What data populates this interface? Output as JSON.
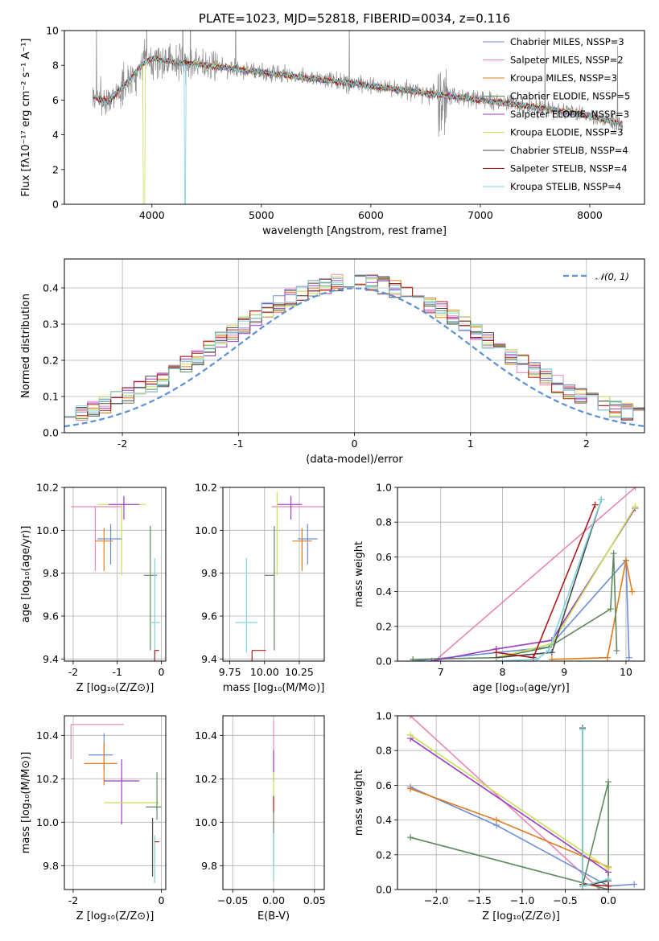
{
  "colors": {
    "Chabrier MILES": "#6c8ed6",
    "Salpeter MILES": "#e887b8",
    "Kroupa MILES": "#e07b1c",
    "Chabrier ELODIE": "#5e8a5e",
    "Salpeter ELODIE": "#9b3dc0",
    "Kroupa ELODIE": "#c8e058",
    "Chabrier STELIB": "#4a4a4a",
    "Salpeter STELIB": "#b01a1a",
    "Kroupa STELIB": "#7fd3dd",
    "normal": "#5b8fd6"
  },
  "chart_data": [
    {
      "id": "spectrum",
      "type": "line",
      "title": "PLATE=1023, MJD=52818, FIBERID=0034, z=0.116",
      "xlabel": "wavelength [Angstrom, rest frame]",
      "ylabel": "Flux [fλ10⁻¹⁷ erg cm⁻² s⁻¹ A⁻¹]",
      "xlim": [
        3200,
        8500
      ],
      "ylim": [
        0,
        10
      ],
      "xticks": [
        4000,
        5000,
        6000,
        7000,
        8000
      ],
      "yticks": [
        0,
        2,
        4,
        6,
        8,
        10
      ],
      "grid": false,
      "legend_position": "top-right",
      "legend": [
        "Chabrier MILES, N_SSP=3",
        "Salpeter MILES, N_SSP=2",
        "Kroupa MILES, N_SSP=3",
        "Chabrier ELODIE, N_SSP=5",
        "Salpeter ELODIE, N_SSP=3",
        "Kroupa ELODIE, N_SSP=3",
        "Chabrier STELIB, N_SSP=4",
        "Salpeter STELIB, N_SSP=4",
        "Kroupa STELIB, N_SSP=4"
      ],
      "continuum_anchors": {
        "x": [
          3450,
          3600,
          3800,
          3900,
          4000,
          4200,
          4500,
          5000,
          5500,
          6000,
          6500,
          7000,
          7500,
          8000,
          8300
        ],
        "y": [
          6.2,
          5.9,
          7.2,
          8.0,
          8.4,
          8.2,
          8.0,
          7.6,
          7.2,
          6.8,
          6.4,
          6.0,
          5.6,
          5.1,
          4.6
        ]
      }
    },
    {
      "id": "residuals",
      "type": "step",
      "xlabel": "(data-model)/error",
      "ylabel": "Normed distribution",
      "xlim": [
        -2.5,
        2.5
      ],
      "ylim": [
        0,
        0.48
      ],
      "xticks": [
        -2,
        -1,
        0,
        1,
        2
      ],
      "yticks": [
        0.0,
        0.1,
        0.2,
        0.3,
        0.4
      ],
      "grid": true,
      "legend_position": "top-right",
      "legend": [
        "𝒩(0, 1)"
      ],
      "bin_width": 0.1
    },
    {
      "id": "age_vs_Z",
      "type": "errorbar",
      "xlabel": "Z [log₁₀(Z/Z⊙)]",
      "ylabel": "age  [log₁₀(age/yr)]",
      "xlim": [
        -2.2,
        0.1
      ],
      "ylim": [
        9.39,
        10.2
      ],
      "xticks": [
        -2,
        -1,
        0
      ],
      "yticks": [
        9.4,
        9.6,
        9.8,
        10.0,
        10.2
      ],
      "grid": true,
      "points": [
        {
          "model": "Salpeter MILES",
          "x": -1.5,
          "xerr": [
            0.55,
            0.6
          ],
          "y": 10.11,
          "yerr": [
            0.3,
            0.0
          ]
        },
        {
          "model": "Kroupa ELODIE",
          "x": -0.9,
          "xerr": [
            0.55,
            0.55
          ],
          "y": 10.12,
          "yerr": [
            0.33,
            0.0
          ]
        },
        {
          "model": "Salpeter ELODIE",
          "x": -0.85,
          "xerr": [
            0.35,
            0.35
          ],
          "y": 10.12,
          "yerr": [
            0.07,
            0.04
          ]
        },
        {
          "model": "Kroupa MILES",
          "x": -1.3,
          "xerr": [
            0.2,
            0.2
          ],
          "y": 9.95,
          "yerr": [
            0.14,
            0.06
          ]
        },
        {
          "model": "Chabrier MILES",
          "x": -1.15,
          "xerr": [
            0.3,
            0.25
          ],
          "y": 9.96,
          "yerr": [
            0.12,
            0.07
          ]
        },
        {
          "model": "Chabrier ELODIE",
          "x": -0.25,
          "xerr": [
            0.15,
            0.15
          ],
          "y": 9.79,
          "yerr": [
            0.35,
            0.23
          ]
        },
        {
          "model": "Kroupa STELIB",
          "x": -0.15,
          "xerr": [
            0.1,
            0.12
          ],
          "y": 9.57,
          "yerr": [
            0.14,
            0.3
          ]
        },
        {
          "model": "Salpeter STELIB",
          "x": -0.15,
          "xerr": [
            0.0,
            0.1
          ],
          "y": 9.44,
          "yerr": [
            0.12,
            0.0
          ]
        }
      ]
    },
    {
      "id": "age_vs_mass",
      "type": "errorbar",
      "xlabel": "mass [log₁₀(M/M⊙)]",
      "ylabel": "",
      "xlim": [
        9.7,
        10.43
      ],
      "ylim": [
        9.39,
        10.2
      ],
      "xticks": [
        9.75,
        10.0,
        10.25
      ],
      "xtick_labels": [
        "9.75",
        "10.00",
        "10.25"
      ],
      "yticks": [
        9.4,
        9.6,
        9.8,
        10.0,
        10.2
      ],
      "grid": true,
      "points": [
        {
          "model": "Salpeter MILES",
          "x": 10.45,
          "xerr": [
            0.4,
            0.0
          ],
          "y": 10.11,
          "yerr": [
            0.3,
            0.0
          ]
        },
        {
          "model": "Salpeter ELODIE",
          "x": 10.19,
          "xerr": [
            0.1,
            0.08
          ],
          "y": 10.12,
          "yerr": [
            0.07,
            0.04
          ]
        },
        {
          "model": "Kroupa ELODIE",
          "x": 10.09,
          "xerr": [
            0.0,
            0.0
          ],
          "y": 10.12,
          "yerr": [
            0.33,
            0.06
          ]
        },
        {
          "model": "Kroupa MILES",
          "x": 10.27,
          "xerr": [
            0.07,
            0.07
          ],
          "y": 9.95,
          "yerr": [
            0.14,
            0.06
          ]
        },
        {
          "model": "Chabrier MILES",
          "x": 10.31,
          "xerr": [
            0.07,
            0.07
          ],
          "y": 9.96,
          "yerr": [
            0.12,
            0.07
          ]
        },
        {
          "model": "Chabrier ELODIE",
          "x": 10.07,
          "xerr": [
            0.07,
            0.0
          ],
          "y": 9.79,
          "yerr": [
            0.35,
            0.23
          ]
        },
        {
          "model": "Kroupa STELIB",
          "x": 9.87,
          "xerr": [
            0.08,
            0.08
          ],
          "y": 9.57,
          "yerr": [
            0.14,
            0.3
          ]
        },
        {
          "model": "Salpeter STELIB",
          "x": 9.91,
          "xerr": [
            0.0,
            0.1
          ],
          "y": 9.44,
          "yerr": [
            0.12,
            0.0
          ]
        }
      ]
    },
    {
      "id": "weight_vs_age",
      "type": "line",
      "xlabel": "age  [log₁₀(age/yr)]",
      "ylabel": "mass weight",
      "xlim": [
        6.3,
        10.3
      ],
      "ylim": [
        0,
        1
      ],
      "xticks": [
        7,
        8,
        9,
        10
      ],
      "yticks": [
        0.0,
        0.2,
        0.4,
        0.6,
        0.8,
        1.0
      ],
      "grid": true,
      "series": [
        {
          "model": "Salpeter MILES",
          "x": [
            6.9,
            10.15
          ],
          "y": [
            0.0,
            1.0
          ]
        },
        {
          "model": "Chabrier MILES",
          "x": [
            6.55,
            8.75,
            10.0,
            10.05
          ],
          "y": [
            0.0,
            0.08,
            0.58,
            0.02
          ]
        },
        {
          "model": "Kroupa MILES",
          "x": [
            8.8,
            9.7,
            10.0,
            10.1
          ],
          "y": [
            0.01,
            0.02,
            0.58,
            0.4
          ]
        },
        {
          "model": "Chabrier ELODIE",
          "x": [
            6.55,
            7.9,
            8.75,
            9.75,
            9.8,
            9.85
          ],
          "y": [
            0.01,
            0.02,
            0.08,
            0.3,
            0.62,
            0.06
          ]
        },
        {
          "model": "Salpeter ELODIE",
          "x": [
            6.85,
            7.9,
            8.8,
            10.15
          ],
          "y": [
            0.0,
            0.07,
            0.12,
            0.88
          ]
        },
        {
          "model": "Kroupa ELODIE",
          "x": [
            7.9,
            8.8,
            10.15
          ],
          "y": [
            0.02,
            0.1,
            0.89
          ]
        },
        {
          "model": "Chabrier STELIB",
          "x": [
            7.9,
            8.8,
            9.6
          ],
          "y": [
            0.02,
            0.05,
            0.93
          ]
        },
        {
          "model": "Salpeter STELIB",
          "x": [
            7.9,
            8.5,
            9.5
          ],
          "y": [
            0.05,
            0.02,
            0.9
          ]
        },
        {
          "model": "Kroupa STELIB",
          "x": [
            7.9,
            8.55,
            8.75,
            9.6
          ],
          "y": [
            0.0,
            0.01,
            0.06,
            0.93
          ]
        }
      ]
    },
    {
      "id": "mass_vs_Z",
      "type": "errorbar",
      "xlabel": "Z [log₁₀(Z/Z⊙)]",
      "ylabel": "mass [log₁₀(M/M⊙)]",
      "xlim": [
        -2.2,
        0.1
      ],
      "ylim": [
        9.69,
        10.49
      ],
      "xticks": [
        -2,
        0
      ],
      "yticks": [
        9.8,
        10.0,
        10.2,
        10.4
      ],
      "grid": true,
      "points": [
        {
          "model": "Salpeter MILES",
          "x": -2.05,
          "xerr": [
            0.0,
            1.2
          ],
          "y": 10.45,
          "yerr": [
            0.16,
            0.0
          ]
        },
        {
          "model": "Chabrier MILES",
          "x": -1.3,
          "xerr": [
            0.35,
            0.2
          ],
          "y": 10.31,
          "yerr": [
            0.07,
            0.1
          ]
        },
        {
          "model": "Kroupa MILES",
          "x": -1.3,
          "xerr": [
            0.45,
            0.3
          ],
          "y": 10.27,
          "yerr": [
            0.1,
            0.1
          ]
        },
        {
          "model": "Salpeter ELODIE",
          "x": -0.9,
          "xerr": [
            0.4,
            0.4
          ],
          "y": 10.19,
          "yerr": [
            0.2,
            0.1
          ]
        },
        {
          "model": "Kroupa ELODIE",
          "x": -0.5,
          "xerr": [
            0.8,
            0.45
          ],
          "y": 10.09,
          "yerr": [
            0.0,
            0.0
          ]
        },
        {
          "model": "Chabrier ELODIE",
          "x": -0.1,
          "xerr": [
            0.25,
            0.1
          ],
          "y": 10.07,
          "yerr": [
            0.06,
            0.16
          ]
        },
        {
          "model": "Kroupa STELIB",
          "x": -0.15,
          "xerr": [
            0.0,
            0.0
          ],
          "y": 9.87,
          "yerr": [
            0.15,
            0.07
          ]
        },
        {
          "model": "Salpeter STELIB",
          "x": -0.05,
          "xerr": [
            0.1,
            0.0
          ],
          "y": 9.91,
          "yerr": [
            0.0,
            0.0
          ]
        },
        {
          "model": "Chabrier STELIB",
          "x": -0.2,
          "xerr": [
            0.0,
            0.0
          ],
          "y": 9.92,
          "yerr": [
            0.17,
            0.1
          ]
        }
      ]
    },
    {
      "id": "mass_vs_ebv",
      "type": "errorbar",
      "xlabel": "E(B-V)",
      "ylabel": "",
      "xlim": [
        -0.062,
        0.062
      ],
      "ylim": [
        9.69,
        10.49
      ],
      "xticks": [
        -0.05,
        0.0,
        0.05
      ],
      "xtick_labels": [
        "−0.05",
        "0.00",
        "0.05"
      ],
      "yticks": [
        9.8,
        10.0,
        10.2,
        10.4
      ],
      "grid": true,
      "points": [
        {
          "model": "Salpeter MILES",
          "x": 0.0,
          "xerr": [
            0,
            0
          ],
          "y": 10.35,
          "yerr": [
            0.12,
            0.12
          ]
        },
        {
          "model": "Salpeter ELODIE",
          "x": 0.0,
          "xerr": [
            0,
            0
          ],
          "y": 10.27,
          "yerr": [
            0.08,
            0.06
          ]
        },
        {
          "model": "Kroupa ELODIE",
          "x": 0.0,
          "xerr": [
            0,
            0
          ],
          "y": 10.15,
          "yerr": [
            0.08,
            0.08
          ]
        },
        {
          "model": "Salpeter STELIB",
          "x": 0.0,
          "xerr": [
            0,
            0
          ],
          "y": 10.08,
          "yerr": [
            0.04,
            0.04
          ]
        },
        {
          "model": "Chabrier ELODIE",
          "x": 0.0,
          "xerr": [
            0,
            0
          ],
          "y": 9.95,
          "yerr": [
            0.15,
            0.1
          ]
        },
        {
          "model": "Kroupa STELIB",
          "x": 0.0,
          "xerr": [
            0,
            0
          ],
          "y": 9.85,
          "yerr": [
            0.12,
            0.1
          ]
        }
      ]
    },
    {
      "id": "weight_vs_Z",
      "type": "line",
      "xlabel": "Z [log₁₀(Z/Z⊙)]",
      "ylabel": "mass weight",
      "xlim": [
        -2.45,
        0.42
      ],
      "ylim": [
        0,
        1
      ],
      "xticks": [
        -2.0,
        -1.5,
        -1.0,
        -0.5,
        0.0
      ],
      "xtick_labels": [
        "−2.0",
        "−1.5",
        "−1.0",
        "−0.5",
        "0.0"
      ],
      "yticks": [
        0.0,
        0.2,
        0.4,
        0.6,
        0.8,
        1.0
      ],
      "grid": true,
      "series": [
        {
          "model": "Salpeter MILES",
          "x": [
            -2.3,
            -0.1
          ],
          "y": [
            1.0,
            0.0
          ]
        },
        {
          "model": "Chabrier MILES",
          "x": [
            -2.3,
            -1.3,
            0.0,
            0.3
          ],
          "y": [
            0.59,
            0.37,
            0.02,
            0.03
          ]
        },
        {
          "model": "Kroupa MILES",
          "x": [
            -2.3,
            -1.3,
            0.0,
            0.0
          ],
          "y": [
            0.58,
            0.4,
            0.13,
            0.0
          ]
        },
        {
          "model": "Chabrier ELODIE",
          "x": [
            -2.3,
            0.0,
            0.0,
            -0.3
          ],
          "y": [
            0.3,
            0.0,
            0.62,
            0.02
          ]
        },
        {
          "model": "Salpeter ELODIE",
          "x": [
            -2.3,
            0.0
          ],
          "y": [
            0.87,
            0.1
          ]
        },
        {
          "model": "Kroupa ELODIE",
          "x": [
            -2.3,
            0.0
          ],
          "y": [
            0.89,
            0.12
          ]
        },
        {
          "model": "Chabrier STELIB",
          "x": [
            -0.3,
            -0.3,
            0.0
          ],
          "y": [
            0.93,
            0.02,
            0.05
          ]
        },
        {
          "model": "Salpeter STELIB",
          "x": [
            -0.3,
            0.0
          ],
          "y": [
            0.03,
            0.02
          ]
        },
        {
          "model": "Kroupa STELIB",
          "x": [
            -0.3,
            -0.3,
            0.0
          ],
          "y": [
            0.92,
            0.02,
            0.06
          ]
        }
      ]
    }
  ]
}
